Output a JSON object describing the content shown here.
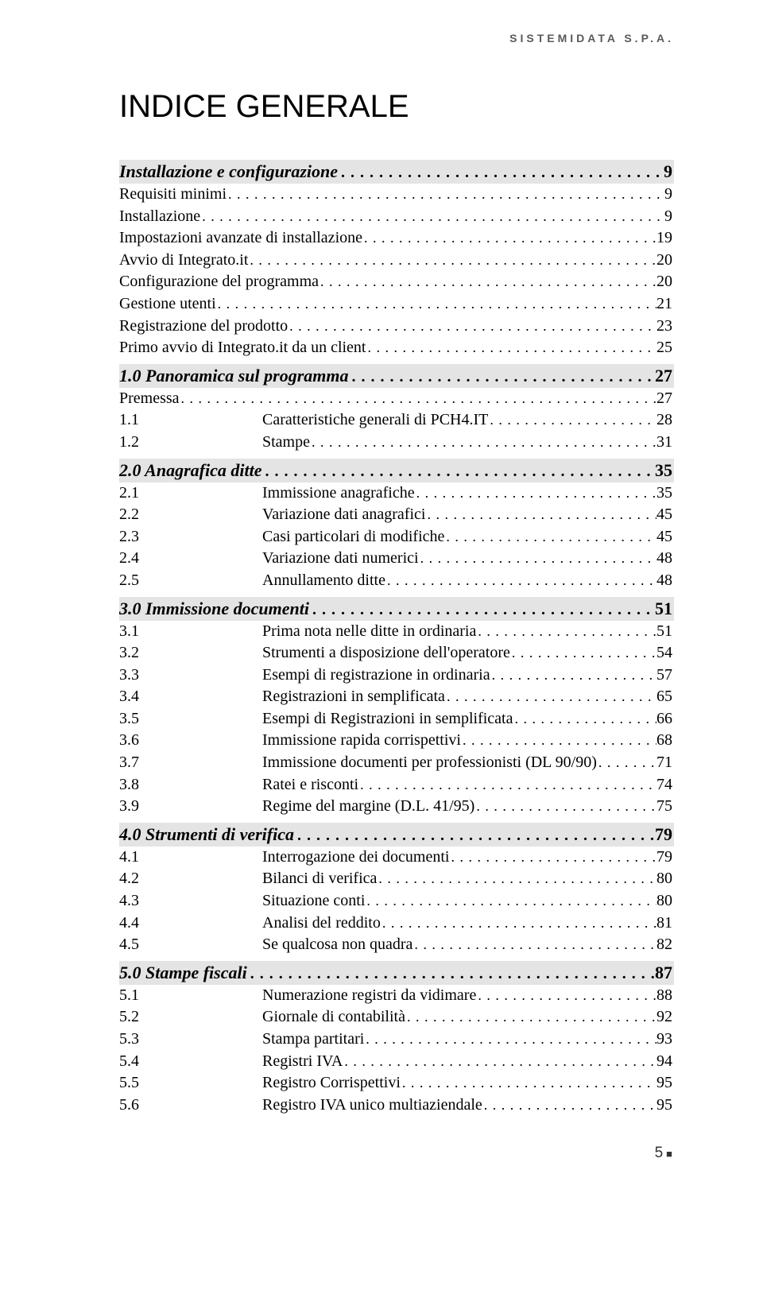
{
  "header": "SISTEMIDATA S.P.A.",
  "title": "INDICE GENERALE",
  "page_footer": "5",
  "colors": {
    "section_bg": "#e4e4e4",
    "text": "#000000",
    "header_text": "#5a5a5a"
  },
  "sections": [
    {
      "title": "Installazione e configurazione",
      "page": "9",
      "items": [
        {
          "num": "",
          "label": "Requisiti minimi",
          "page": "9"
        },
        {
          "num": "",
          "label": "Installazione",
          "page": "9"
        },
        {
          "num": "",
          "label": "Impostazioni avanzate di installazione",
          "page": "19"
        },
        {
          "num": "",
          "label": "Avvio di Integrato.it",
          "page": "20"
        },
        {
          "num": "",
          "label": "Configurazione del programma",
          "page": "20"
        },
        {
          "num": "",
          "label": "Gestione utenti",
          "page": "21"
        },
        {
          "num": "",
          "label": "Registrazione del prodotto",
          "page": "23"
        },
        {
          "num": "",
          "label": "Primo avvio di Integrato.it da un client",
          "page": "25"
        }
      ]
    },
    {
      "title": "1.0 Panoramica sul programma",
      "page": "27",
      "items": [
        {
          "num": "",
          "label": "Premessa",
          "page": "27"
        },
        {
          "num": "1.1",
          "label": "Caratteristiche generali di PCH4.IT",
          "page": "28"
        },
        {
          "num": "1.2",
          "label": "Stampe",
          "page": "31"
        }
      ]
    },
    {
      "title": "2.0 Anagrafica ditte",
      "page": "35",
      "items": [
        {
          "num": "2.1",
          "label": "Immissione anagrafiche",
          "page": "35"
        },
        {
          "num": "2.2",
          "label": "Variazione dati anagrafici",
          "page": "45"
        },
        {
          "num": "2.3",
          "label": "Casi particolari di modifiche",
          "page": "45"
        },
        {
          "num": "2.4",
          "label": "Variazione dati numerici",
          "page": "48"
        },
        {
          "num": "2.5",
          "label": "Annullamento ditte",
          "page": "48"
        }
      ]
    },
    {
      "title": "3.0 Immissione documenti",
      "page": "51",
      "items": [
        {
          "num": "3.1",
          "label": "Prima nota nelle ditte in ordinaria",
          "page": "51"
        },
        {
          "num": "3.2",
          "label": "Strumenti a disposizione dell'operatore",
          "page": "54"
        },
        {
          "num": "3.3",
          "label": "Esempi di registrazione in ordinaria",
          "page": "57"
        },
        {
          "num": "3.4",
          "label": "Registrazioni in semplificata",
          "page": "65"
        },
        {
          "num": "3.5",
          "label": "Esempi di Registrazioni in semplificata",
          "page": "66"
        },
        {
          "num": "3.6",
          "label": "Immissione rapida corrispettivi",
          "page": "68"
        },
        {
          "num": "3.7",
          "label": "Immissione documenti per professionisti (DL 90/90)",
          "page": "71"
        },
        {
          "num": "3.8",
          "label": "Ratei e risconti",
          "page": "74"
        },
        {
          "num": "3.9",
          "label": "Regime del margine (D.L. 41/95)",
          "page": "75"
        }
      ]
    },
    {
      "title": "4.0 Strumenti di verifica",
      "page": "79",
      "items": [
        {
          "num": "4.1",
          "label": "Interrogazione dei documenti",
          "page": "79"
        },
        {
          "num": "4.2",
          "label": "Bilanci di verifica",
          "page": "80"
        },
        {
          "num": "4.3",
          "label": "Situazione conti",
          "page": "80"
        },
        {
          "num": "4.4",
          "label": "Analisi del reddito",
          "page": "81"
        },
        {
          "num": "4.5",
          "label": "Se qualcosa non quadra",
          "page": "82"
        }
      ]
    },
    {
      "title": "5.0 Stampe fiscali",
      "page": "87",
      "items": [
        {
          "num": "5.1",
          "label": "Numerazione registri da vidimare",
          "page": "88"
        },
        {
          "num": "5.2",
          "label": "Giornale di contabilità",
          "page": "92"
        },
        {
          "num": "5.3",
          "label": "Stampa partitari",
          "page": "93"
        },
        {
          "num": "5.4",
          "label": "Registri IVA",
          "page": "94"
        },
        {
          "num": "5.5",
          "label": "Registro Corrispettivi",
          "page": "95"
        },
        {
          "num": "5.6",
          "label": "Registro IVA unico multiaziendale",
          "page": "95"
        }
      ]
    }
  ]
}
